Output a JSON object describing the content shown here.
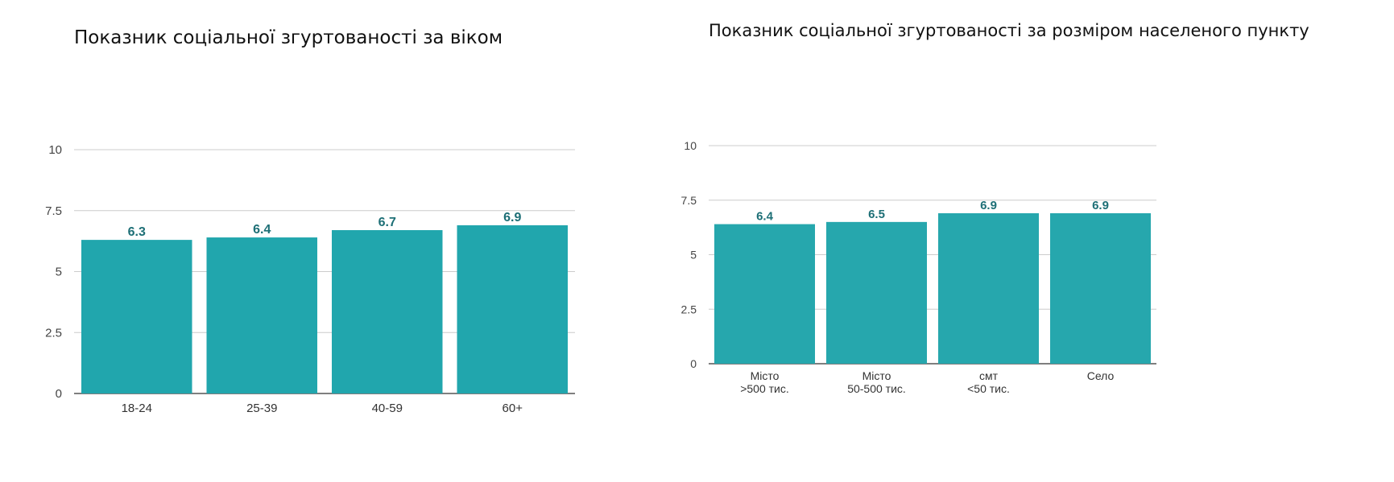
{
  "titles": {
    "age": "Показник соціальної згуртованості за віком",
    "size": "Показник соціальної згуртованості за розміром населеного пункту"
  },
  "chart_data": [
    {
      "type": "bar",
      "title": "Показник соціальної згуртованості за віком",
      "categories": [
        [
          "18-24"
        ],
        [
          "25-39"
        ],
        [
          "40-59"
        ],
        [
          "60+"
        ]
      ],
      "values": [
        6.3,
        6.4,
        6.7,
        6.9
      ],
      "data_labels": [
        "6.3",
        "6.4",
        "6.7",
        "6.9"
      ],
      "yticks": [
        "0",
        "2.5",
        "5",
        "7.5",
        "10"
      ],
      "ylim": [
        0,
        10
      ],
      "grid": true,
      "bar_color": "#21a6ad",
      "label_color": "#1d6f76"
    },
    {
      "type": "bar",
      "title": "Показник соціальної згуртованості за розміром населеного пункту",
      "categories": [
        [
          "Місто",
          ">500 тис."
        ],
        [
          "Місто",
          "50-500 тис."
        ],
        [
          "смт",
          "<50 тис."
        ],
        [
          "Село"
        ]
      ],
      "values": [
        6.4,
        6.5,
        6.9,
        6.9
      ],
      "data_labels": [
        "6.4",
        "6.5",
        "6.9",
        "6.9"
      ],
      "yticks": [
        "0",
        "2.5",
        "5",
        "7.5",
        "10"
      ],
      "ylim": [
        0,
        10
      ],
      "grid": true,
      "bar_color": "#26a7ad",
      "label_color": "#1d6f76"
    }
  ]
}
